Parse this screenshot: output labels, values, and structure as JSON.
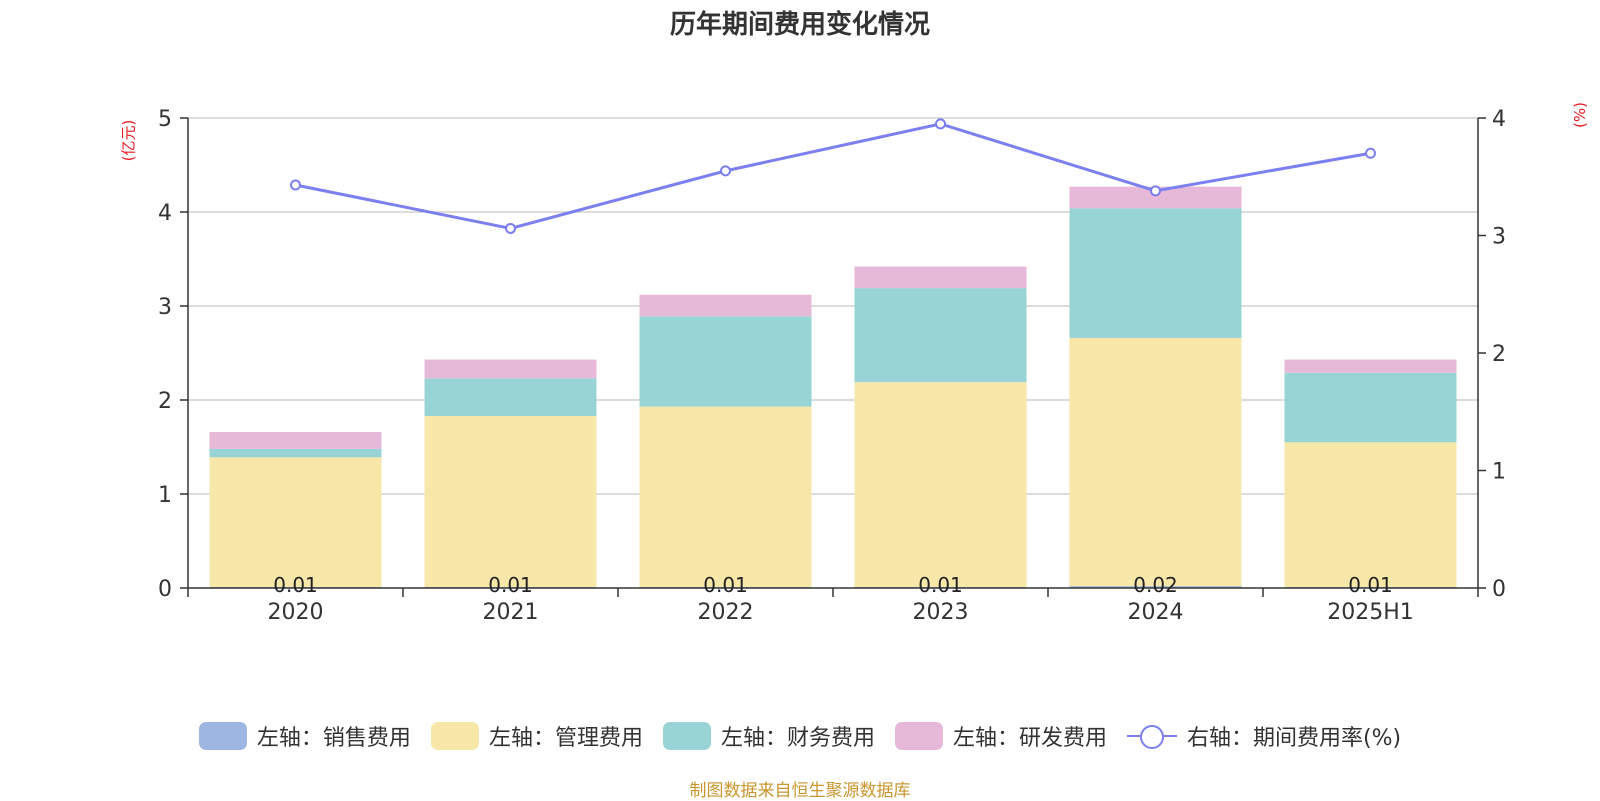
{
  "chart_data": {
    "type": "bar",
    "title": "历年期间费用变化情况",
    "left_axis_unit": "(亿元)",
    "right_axis_unit": "(%)",
    "categories": [
      "2020",
      "2021",
      "2022",
      "2023",
      "2024",
      "2025H1"
    ],
    "y_left": {
      "min": 0,
      "max": 5,
      "ticks": [
        "0",
        "1",
        "2",
        "3",
        "4",
        "5"
      ]
    },
    "y_right": {
      "min": 0,
      "max": 4,
      "ticks": [
        "0",
        "1",
        "2",
        "3",
        "4"
      ]
    },
    "stack_series": [
      {
        "name": "左轴：销售费用",
        "color": "#9db7e2",
        "values": [
          0.01,
          0.01,
          0.01,
          0.01,
          0.02,
          0.01
        ],
        "labels": [
          "0.01",
          "0.01",
          "0.01",
          "0.01",
          "0.02",
          "0.01"
        ]
      },
      {
        "name": "左轴：管理费用",
        "color": "#f7e7a8",
        "values": [
          1.38,
          1.82,
          1.92,
          2.18,
          2.64,
          1.54
        ]
      },
      {
        "name": "左轴：财务费用",
        "color": "#98d4d5",
        "values": [
          0.09,
          0.4,
          0.96,
          1.0,
          1.38,
          0.74
        ]
      },
      {
        "name": "左轴：研发费用",
        "color": "#e6b9d8",
        "values": [
          0.18,
          0.2,
          0.23,
          0.23,
          0.23,
          0.14
        ]
      }
    ],
    "line_series": {
      "name": "右轴：期间费用率(%)",
      "color": "#7b7ff0",
      "values": [
        3.43,
        3.06,
        3.55,
        3.95,
        3.38,
        3.7
      ]
    },
    "grid": true,
    "legend_position": "bottom"
  },
  "source_note": "制图数据来自恒生聚源数据库"
}
